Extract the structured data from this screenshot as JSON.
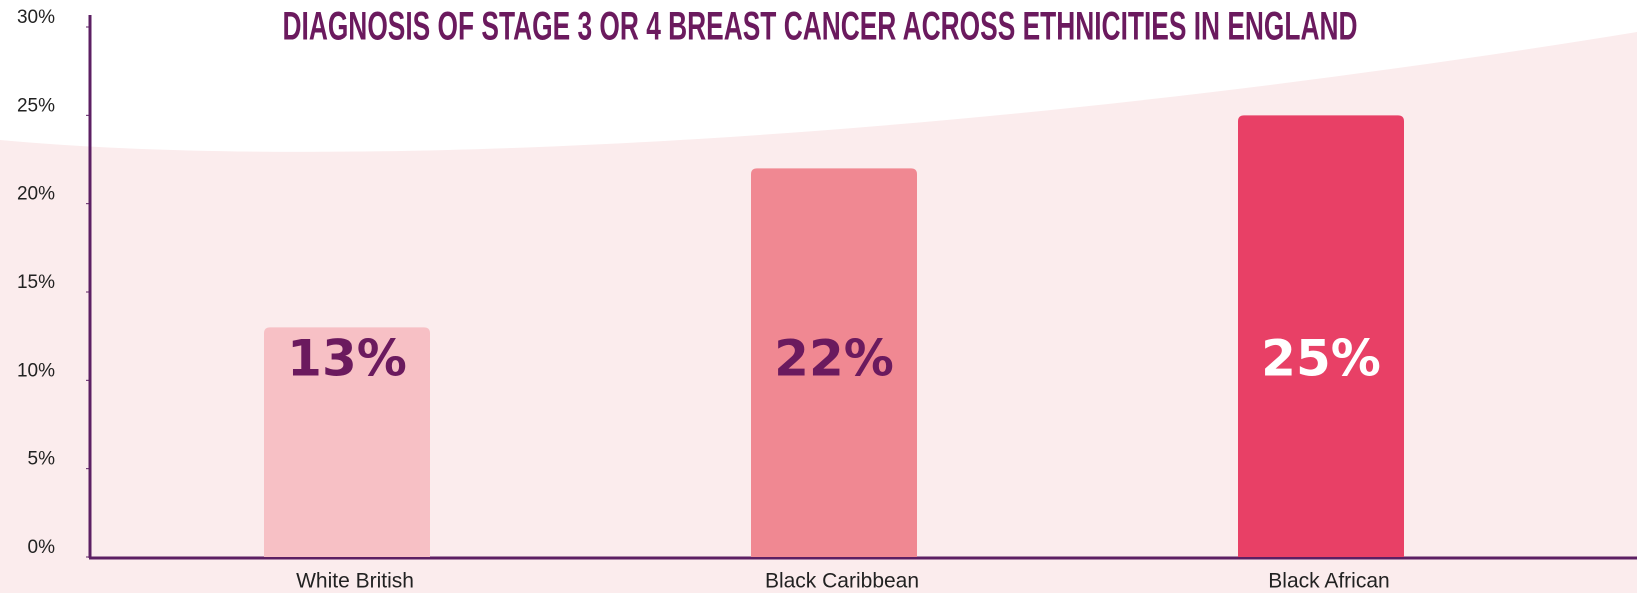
{
  "chart_data": {
    "type": "bar",
    "title": "DIAGNOSIS OF STAGE 3 OR 4 BREAST CANCER ACROSS ETHNICITIES IN ENGLAND",
    "categories": [
      "White British",
      "Black Caribbean",
      "Black African"
    ],
    "values": [
      13,
      22,
      25
    ],
    "value_labels": [
      "13%",
      "22%",
      "25%"
    ],
    "colors": [
      "#f7c0c5",
      "#f08892",
      "#e84066"
    ],
    "label_colors": [
      "#6b1a5e",
      "#6b1a5e",
      "#ffffff"
    ],
    "ylim": [
      0,
      30
    ],
    "yticks": [
      {
        "value": 0,
        "label": "0%"
      },
      {
        "value": 5,
        "label": "5%"
      },
      {
        "value": 10,
        "label": "10%"
      },
      {
        "value": 15,
        "label": "15%"
      },
      {
        "value": 20,
        "label": "20%"
      },
      {
        "value": 25,
        "label": "25%"
      },
      {
        "value": 30,
        "label": "30%"
      }
    ],
    "grid": false
  }
}
